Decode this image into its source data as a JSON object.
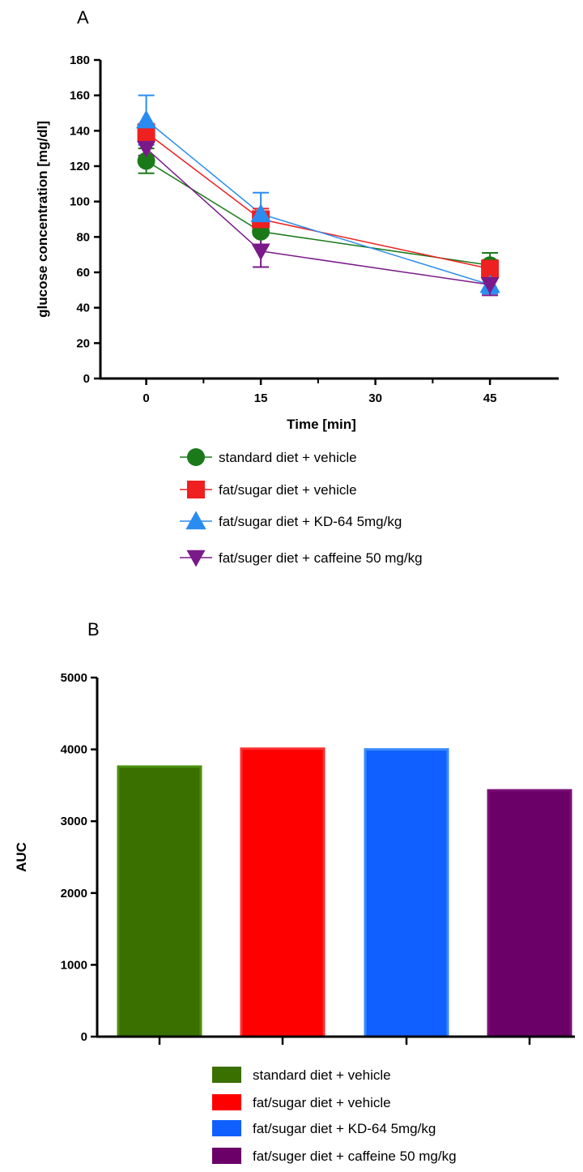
{
  "panel_a": {
    "label": "A",
    "legend": [
      {
        "label": "standard diet + vehicle",
        "marker": "circle"
      },
      {
        "label": "fat/sugar diet + vehicle",
        "marker": "square"
      },
      {
        "label": "fat/sugar diet + KD-64 5mg/kg",
        "marker": "triangle-up"
      },
      {
        "label": "fat/suger diet + caffeine 50 mg/kg",
        "marker": "triangle-down"
      }
    ]
  },
  "panel_b": {
    "label": "B",
    "legend": [
      {
        "label": "standard diet + vehicle"
      },
      {
        "label": "fat/sugar diet + vehicle"
      },
      {
        "label": "fat/sugar diet + KD-64 5mg/kg"
      },
      {
        "label": "fat/suger diet + caffeine 50 mg/kg"
      }
    ]
  },
  "chart_data": [
    {
      "type": "line",
      "xlabel": "Time [min]",
      "ylabel": "glucose concentration [mg/dl]",
      "x_ticks": [
        0,
        15,
        30,
        45
      ],
      "y_ticks": [
        0,
        20,
        40,
        60,
        80,
        100,
        120,
        140,
        160,
        180
      ],
      "xlim": [
        -6,
        54
      ],
      "ylim": [
        0,
        180
      ],
      "legend_position": "bottom",
      "series": [
        {
          "name": "standard diet + vehicle",
          "color": "#1a7a1a",
          "marker": "circle",
          "x": [
            0,
            15,
            45
          ],
          "y": [
            123,
            83,
            64
          ],
          "err": [
            7,
            8,
            7
          ]
        },
        {
          "name": "fat/sugar diet + vehicle",
          "color": "#ee2020",
          "marker": "square",
          "x": [
            0,
            15,
            45
          ],
          "y": [
            139,
            90,
            62
          ],
          "err": [
            5,
            6,
            5
          ]
        },
        {
          "name": "fat/sugar diet + KD-64 5mg/kg",
          "color": "#2a8cf0",
          "marker": "triangle-up",
          "x": [
            0,
            15,
            45
          ],
          "y": [
            146,
            93,
            53
          ],
          "err": [
            14,
            12,
            5
          ]
        },
        {
          "name": "fat/suger diet + caffeine 50 mg/kg",
          "color": "#7a1a8a",
          "marker": "triangle-down",
          "x": [
            0,
            15,
            45
          ],
          "y": [
            130,
            72,
            53
          ],
          "err": [
            4,
            9,
            6
          ]
        }
      ]
    },
    {
      "type": "bar",
      "ylabel": "AUC",
      "y_ticks": [
        0,
        1000,
        2000,
        3000,
        4000,
        5000
      ],
      "ylim": [
        0,
        5000
      ],
      "legend_position": "bottom",
      "categories": [
        "standard diet + vehicle",
        "fat/sugar diet + vehicle",
        "fat/sugar diet + KD-64 5mg/kg",
        "fat/suger diet + caffeine 50 mg/kg"
      ],
      "values": [
        3760,
        4010,
        4000,
        3430
      ],
      "colors": [
        "#3a7000",
        "#ff0000",
        "#1060ff",
        "#6a0068"
      ],
      "edge_colors": [
        "#4a9010",
        "#ff3030",
        "#3a8aff",
        "#7a1078"
      ]
    }
  ]
}
